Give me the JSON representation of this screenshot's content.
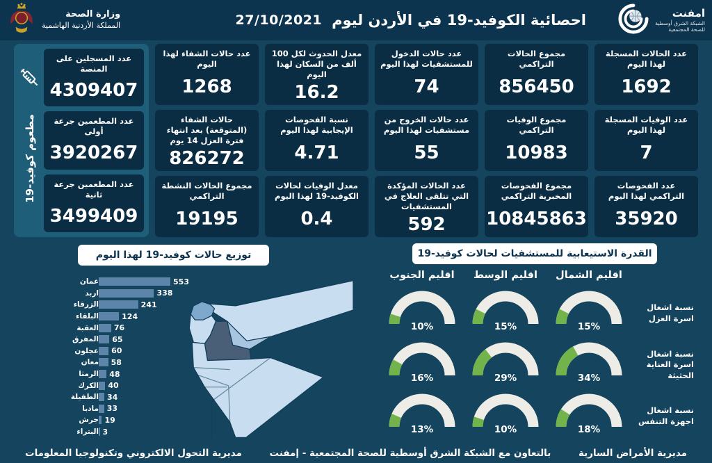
{
  "header": {
    "title": "احصائية الكوفيد-19 في الأردن ليوم",
    "date": "27/10/2021",
    "ministry_line1": "وزارة الصحة",
    "ministry_line2": "المملكة الأردنية الهاشمية",
    "logo_name": "امفنت",
    "logo_sub1": "الشبكة الشرق أوسطية",
    "logo_sub2": "للصحة المجتمعية"
  },
  "stats_columns": [
    {
      "cards": [
        {
          "label": "عدد الحالات المسجلة لهذا اليوم",
          "value": "1692"
        },
        {
          "label": "عدد الوفيات المسجلة لهذا اليوم",
          "value": "7"
        },
        {
          "label": "عدد الفحوصات التراكمي لهذا اليوم",
          "value": "35920"
        }
      ]
    },
    {
      "cards": [
        {
          "label": "مجموع الحالات التراكمي",
          "value": "856450"
        },
        {
          "label": "مجموع الوفيات التراكمي",
          "value": "10983"
        },
        {
          "label": "مجموع الفحوصات المخبرية التراكمي",
          "value": "10845863"
        }
      ]
    },
    {
      "cards": [
        {
          "label": "عدد حالات الدخول للمستشفيات لهذا اليوم",
          "value": "74"
        },
        {
          "label": "عدد حالات الخروج من مستشفيات لهذا اليوم",
          "value": "55"
        },
        {
          "label": "عدد الحالات المؤكدة التي تتلقى العلاج في المستشفيات",
          "value": "592"
        }
      ]
    },
    {
      "cards": [
        {
          "label": "معدل الحدوث لكل 100 ألف من السكان لهذا اليوم",
          "value": "16.2"
        },
        {
          "label": "نسبة الفحوصات الإيجابية لهذا اليوم",
          "value": "4.71"
        },
        {
          "label": "معدل الوفيات لحالات الكوفيد-19 لهذا اليوم",
          "value": "0.4"
        }
      ]
    },
    {
      "cards": [
        {
          "label": "عدد حالات الشفاء لهذا اليوم",
          "value": "1268"
        },
        {
          "label": "حالات الشفاء (المتوقعة) بعد انتهاء فترة العزل 14 يوم",
          "value": "826272"
        },
        {
          "label": "مجموع الحالات النشطة التراكمي",
          "value": "19195"
        }
      ]
    }
  ],
  "vaccine_panel": {
    "vertical_label": "مطعوم كوفيد-19",
    "cards": [
      {
        "label": "عدد المسجلين على المنصة",
        "value": "4309407"
      },
      {
        "label": "عدد المطعمين جرعة أولى",
        "value": "3920267"
      },
      {
        "label": "عدد المطعمين جرعة ثانية",
        "value": "3499409"
      }
    ]
  },
  "chart_data": [
    {
      "type": "bar",
      "title": "توزيع حالات كوفيد-19 لهذا اليوم",
      "categories": [
        "عمان",
        "اربد",
        "الزرقاء",
        "البلقاء",
        "العقبة",
        "المفرق",
        "عجلون",
        "معان",
        "الرمثا",
        "الكرك",
        "الطفيلة",
        "مادبا",
        "جرش",
        "البتراء"
      ],
      "values": [
        553,
        338,
        241,
        124,
        76,
        65,
        60,
        58,
        48,
        40,
        34,
        33,
        19,
        3
      ],
      "orientation": "horizontal",
      "bar_color": "#5d84a9",
      "xlim": [
        0,
        553
      ]
    },
    {
      "type": "gauge-grid",
      "title": "القدرة الاستيعابية للمستشفيات لحالات كوفيد-19",
      "regions": [
        "اقليم الشمال",
        "اقليم الوسط",
        "اقليم الجنوب"
      ],
      "rows": [
        {
          "label": "نسبة اشغال اسرة العزل",
          "values": [
            15,
            15,
            10
          ]
        },
        {
          "label": "نسبة اشغال اسرة العناية الحثيثة",
          "values": [
            34,
            29,
            16
          ]
        },
        {
          "label": "نسبة اشغال اجهزة التنفس",
          "values": [
            18,
            10,
            13
          ]
        }
      ],
      "unit": "%",
      "gauge_fill_color": "#72b34c",
      "gauge_track_color": "#edece6"
    }
  ],
  "map": {
    "colors": {
      "light": "#c8def0",
      "medium1": "#7fa9cc",
      "medium2": "#a9c6e0",
      "dark": "#485f77"
    }
  },
  "footer": {
    "right": "مديرية الأمراض السارية",
    "center": "بالتعاون مع الشبكة الشرق أوسطية للصحة المجتمعية - إمفنت",
    "left": "مديرية التحول الالكتروني وتكنولوجيا المعلومات"
  },
  "colors": {
    "background": "#14445e",
    "card": "#0b2d44",
    "header": "#0d344e",
    "vaccine_panel": "#1e5e78",
    "accent_green": "#72b34c"
  }
}
